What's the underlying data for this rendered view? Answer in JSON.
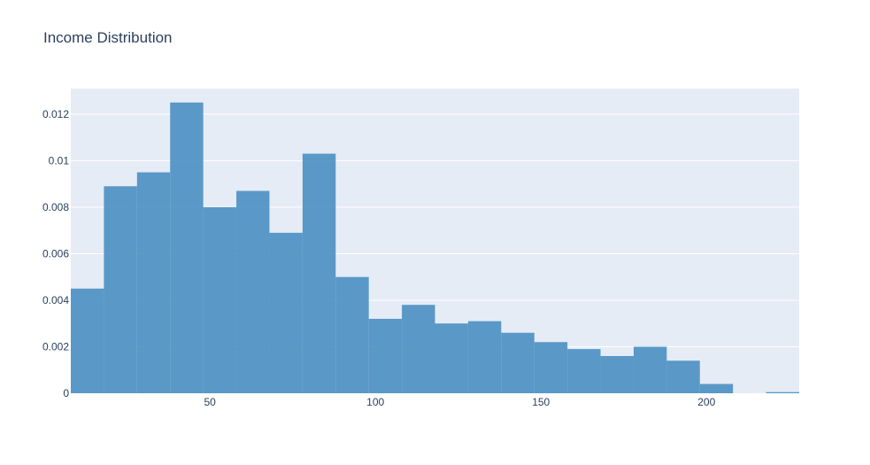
{
  "chart_data": {
    "type": "bar",
    "title": "Income Distribution",
    "xlabel": "",
    "ylabel": "",
    "xlim": [
      8,
      228
    ],
    "ylim": [
      0,
      0.0131
    ],
    "grid": true,
    "colors": {
      "bar": "#4a8fc2",
      "plot_bg": "#e5ecf6",
      "grid": "#ffffff",
      "text": "#2a3f5f"
    },
    "x_ticks": [
      50,
      100,
      150,
      200
    ],
    "y_ticks": [
      0,
      0.002,
      0.004,
      0.006,
      0.008,
      0.01,
      0.012
    ],
    "y_tick_labels": [
      "0",
      "0.002",
      "0.004",
      "0.006",
      "0.008",
      "0.01",
      "0.012"
    ],
    "bins": [
      {
        "x0": 8,
        "x1": 18,
        "value": 0.0045
      },
      {
        "x0": 18,
        "x1": 28,
        "value": 0.0089
      },
      {
        "x0": 28,
        "x1": 38,
        "value": 0.0095
      },
      {
        "x0": 38,
        "x1": 48,
        "value": 0.0125
      },
      {
        "x0": 48,
        "x1": 58,
        "value": 0.008
      },
      {
        "x0": 58,
        "x1": 68,
        "value": 0.0087
      },
      {
        "x0": 68,
        "x1": 78,
        "value": 0.0069
      },
      {
        "x0": 78,
        "x1": 88,
        "value": 0.0103
      },
      {
        "x0": 88,
        "x1": 98,
        "value": 0.005
      },
      {
        "x0": 98,
        "x1": 108,
        "value": 0.0032
      },
      {
        "x0": 108,
        "x1": 118,
        "value": 0.0038
      },
      {
        "x0": 118,
        "x1": 128,
        "value": 0.003
      },
      {
        "x0": 128,
        "x1": 138,
        "value": 0.0031
      },
      {
        "x0": 138,
        "x1": 148,
        "value": 0.0026
      },
      {
        "x0": 148,
        "x1": 158,
        "value": 0.0022
      },
      {
        "x0": 158,
        "x1": 168,
        "value": 0.0019
      },
      {
        "x0": 168,
        "x1": 178,
        "value": 0.0016
      },
      {
        "x0": 178,
        "x1": 188,
        "value": 0.002
      },
      {
        "x0": 188,
        "x1": 198,
        "value": 0.0014
      },
      {
        "x0": 198,
        "x1": 208,
        "value": 0.0004
      },
      {
        "x0": 208,
        "x1": 218,
        "value": 0
      },
      {
        "x0": 218,
        "x1": 228,
        "value": 5e-05
      }
    ]
  }
}
